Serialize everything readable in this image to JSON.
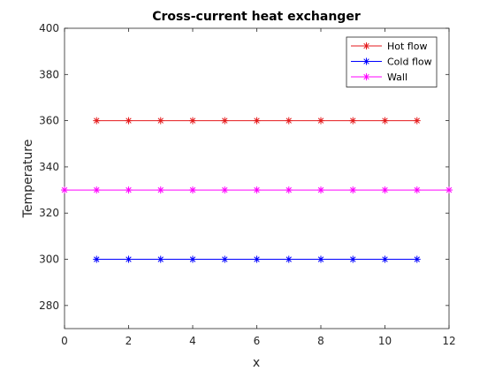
{
  "chart_data": {
    "type": "line",
    "title": "Cross-current heat exchanger",
    "xlabel": "x",
    "ylabel": "Temperature",
    "xlim": [
      0,
      12
    ],
    "ylim": [
      270,
      400
    ],
    "xticks": [
      "0",
      "2",
      "4",
      "6",
      "8",
      "10",
      "12"
    ],
    "yticks": [
      "280",
      "300",
      "320",
      "340",
      "360",
      "380",
      "400"
    ],
    "grid": false,
    "legend_placement": "top-right",
    "series": [
      {
        "name": "Hot flow",
        "color": "#e41a1c",
        "marker": "asterisk",
        "x": [
          1,
          2,
          3,
          4,
          5,
          6,
          7,
          8,
          9,
          10,
          11
        ],
        "y": [
          360,
          360,
          360,
          360,
          360,
          360,
          360,
          360,
          360,
          360,
          360
        ]
      },
      {
        "name": "Cold flow",
        "color": "#0000ff",
        "marker": "asterisk",
        "x": [
          1,
          2,
          3,
          4,
          5,
          6,
          7,
          8,
          9,
          10,
          11
        ],
        "y": [
          300,
          300,
          300,
          300,
          300,
          300,
          300,
          300,
          300,
          300,
          300
        ]
      },
      {
        "name": "Wall",
        "color": "#ff00ff",
        "marker": "asterisk",
        "x": [
          0,
          1,
          2,
          3,
          4,
          5,
          6,
          7,
          8,
          9,
          10,
          11,
          12
        ],
        "y": [
          330,
          330,
          330,
          330,
          330,
          330,
          330,
          330,
          330,
          330,
          330,
          330,
          330
        ]
      }
    ]
  }
}
